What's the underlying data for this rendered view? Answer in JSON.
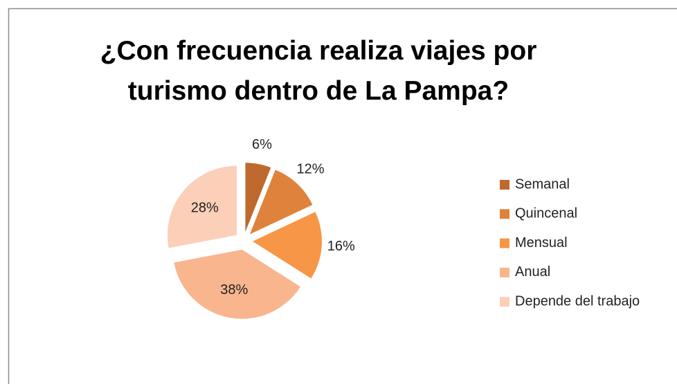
{
  "chart_data": {
    "type": "pie",
    "title": "¿Con frecuencia realiza viajes por turismo dentro de La Pampa?",
    "categories": [
      "Semanal",
      "Quincenal",
      "Mensual",
      "Anual",
      "Depende del trabajo"
    ],
    "values": [
      6,
      12,
      16,
      38,
      28
    ],
    "value_labels": [
      "6%",
      "12%",
      "16%",
      "38%",
      "28%"
    ],
    "colors": [
      "#c0692e",
      "#de823c",
      "#f79646",
      "#f9b58e",
      "#fbcfb8"
    ],
    "legend": "right"
  }
}
